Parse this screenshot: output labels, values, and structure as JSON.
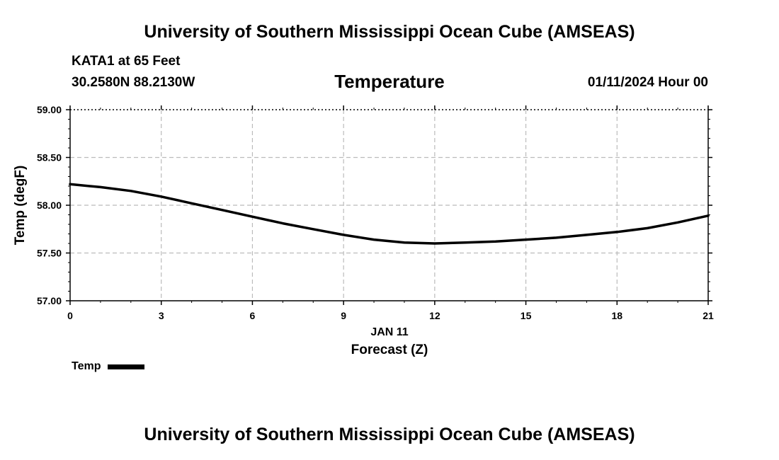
{
  "header": {
    "title": "University of Southern Mississippi Ocean Cube (AMSEAS)",
    "station": "KATA1 at 65 Feet",
    "coords": "30.2580N  88.2130W",
    "variable": "Temperature",
    "datetime": "01/11/2024 Hour 00"
  },
  "footer": {
    "title": "University of Southern Mississippi Ocean Cube (AMSEAS)"
  },
  "legend": {
    "label": "Temp",
    "color": "#000000"
  },
  "chart_data": {
    "type": "line",
    "title": "Temperature",
    "xlabel": "Forecast (Z)",
    "xsublabel": "JAN 11",
    "ylabel": "Temp (degF)",
    "xlim": [
      0,
      21
    ],
    "ylim": [
      57.0,
      59.0
    ],
    "xticks": [
      0,
      3,
      6,
      9,
      12,
      15,
      18,
      21
    ],
    "xtick_labels": [
      "0",
      "3",
      "6",
      "9",
      "12",
      "15",
      "18",
      "21"
    ],
    "yticks": [
      57.0,
      57.5,
      58.0,
      58.5,
      59.0
    ],
    "ytick_labels": [
      "57.00",
      "57.50",
      "58.00",
      "58.50",
      "59.00"
    ],
    "grid": true,
    "series": [
      {
        "name": "Temp",
        "color": "#000000",
        "x": [
          0,
          1,
          2,
          3,
          4,
          5,
          6,
          7,
          8,
          9,
          10,
          11,
          12,
          13,
          14,
          15,
          16,
          17,
          18,
          19,
          20,
          21
        ],
        "y": [
          58.22,
          58.19,
          58.15,
          58.09,
          58.02,
          57.95,
          57.88,
          57.81,
          57.75,
          57.69,
          57.64,
          57.61,
          57.6,
          57.61,
          57.62,
          57.64,
          57.66,
          57.69,
          57.72,
          57.76,
          57.82,
          57.89
        ]
      }
    ]
  }
}
